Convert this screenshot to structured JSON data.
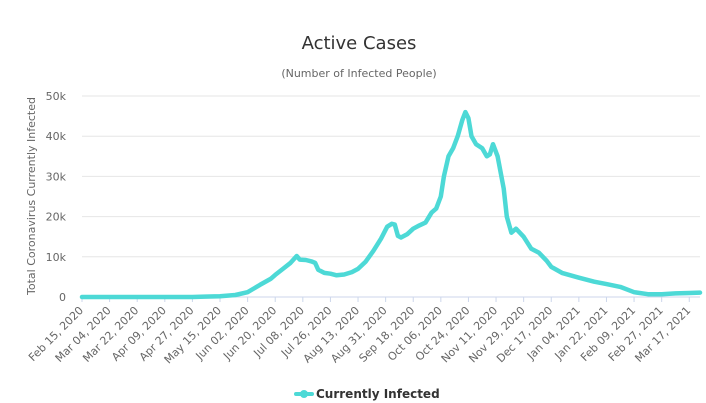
{
  "chart_data": {
    "type": "line",
    "title": "Active Cases",
    "subtitle": "(Number of Infected People)",
    "xlabel": "",
    "ylabel": "Total Coronavirus Currently Infected",
    "x_tick_labels": [
      "Feb 15, 2020",
      "Mar 04, 2020",
      "Mar 22, 2020",
      "Apr 09, 2020",
      "Apr 27, 2020",
      "May 15, 2020",
      "Jun 02, 2020",
      "Jun 20, 2020",
      "Jul 08, 2020",
      "Jul 26, 2020",
      "Aug 13, 2020",
      "Aug 31, 2020",
      "Sep 18, 2020",
      "Oct 06, 2020",
      "Oct 24, 2020",
      "Nov 11, 2020",
      "Nov 29, 2020",
      "Dec 17, 2020",
      "Jan 04, 2021",
      "Jan 22, 2021",
      "Feb 09, 2021",
      "Feb 27, 2021",
      "Mar 17, 2021"
    ],
    "y_ticks": [
      0,
      10000,
      20000,
      30000,
      40000,
      50000
    ],
    "y_tick_labels": [
      "0",
      "10k",
      "20k",
      "30k",
      "40k",
      "50k"
    ],
    "ylim": [
      0,
      50000
    ],
    "grid": true,
    "legend_position": "bottom-center",
    "series": [
      {
        "name": "Currently Infected",
        "color": "#4dd9d6",
        "points": [
          [
            "Feb 15, 2020",
            0
          ],
          [
            "Mar 04, 2020",
            0
          ],
          [
            "Mar 22, 2020",
            0
          ],
          [
            "Apr 09, 2020",
            0
          ],
          [
            "Apr 27, 2020",
            0
          ],
          [
            "May 05, 2020",
            100
          ],
          [
            "May 15, 2020",
            200
          ],
          [
            "May 25, 2020",
            500
          ],
          [
            "Jun 02, 2020",
            1200
          ],
          [
            "Jun 10, 2020",
            3000
          ],
          [
            "Jun 17, 2020",
            4500
          ],
          [
            "Jun 20, 2020",
            5500
          ],
          [
            "Jun 25, 2020",
            7000
          ],
          [
            "Jun 30, 2020",
            8500
          ],
          [
            "Jul 04, 2020",
            10200
          ],
          [
            "Jul 06, 2020",
            9300
          ],
          [
            "Jul 10, 2020",
            9200
          ],
          [
            "Jul 14, 2020",
            8800
          ],
          [
            "Jul 16, 2020",
            8500
          ],
          [
            "Jul 18, 2020",
            6800
          ],
          [
            "Jul 22, 2020",
            6000
          ],
          [
            "Jul 26, 2020",
            5800
          ],
          [
            "Jul 30, 2020",
            5400
          ],
          [
            "Aug 04, 2020",
            5600
          ],
          [
            "Aug 09, 2020",
            6200
          ],
          [
            "Aug 13, 2020",
            7000
          ],
          [
            "Aug 18, 2020",
            8800
          ],
          [
            "Aug 23, 2020",
            11500
          ],
          [
            "Aug 28, 2020",
            14500
          ],
          [
            "Sep 01, 2020",
            17500
          ],
          [
            "Sep 04, 2020",
            18200
          ],
          [
            "Sep 06, 2020",
            18000
          ],
          [
            "Sep 08, 2020",
            15200
          ],
          [
            "Sep 10, 2020",
            14800
          ],
          [
            "Sep 14, 2020",
            15600
          ],
          [
            "Sep 18, 2020",
            17000
          ],
          [
            "Sep 22, 2020",
            17800
          ],
          [
            "Sep 26, 2020",
            18500
          ],
          [
            "Sep 30, 2020",
            21000
          ],
          [
            "Oct 03, 2020",
            22000
          ],
          [
            "Oct 06, 2020",
            25000
          ],
          [
            "Oct 08, 2020",
            30000
          ],
          [
            "Oct 11, 2020",
            35000
          ],
          [
            "Oct 14, 2020",
            37000
          ],
          [
            "Oct 17, 2020",
            40000
          ],
          [
            "Oct 20, 2020",
            44000
          ],
          [
            "Oct 22, 2020",
            46000
          ],
          [
            "Oct 24, 2020",
            44500
          ],
          [
            "Oct 26, 2020",
            40000
          ],
          [
            "Oct 29, 2020",
            38000
          ],
          [
            "Nov 02, 2020",
            37000
          ],
          [
            "Nov 05, 2020",
            35000
          ],
          [
            "Nov 07, 2020",
            35500
          ],
          [
            "Nov 09, 2020",
            38000
          ],
          [
            "Nov 12, 2020",
            35000
          ],
          [
            "Nov 16, 2020",
            27000
          ],
          [
            "Nov 18, 2020",
            20000
          ],
          [
            "Nov 21, 2020",
            16000
          ],
          [
            "Nov 24, 2020",
            17000
          ],
          [
            "Nov 29, 2020",
            15000
          ],
          [
            "Dec 04, 2020",
            12000
          ],
          [
            "Dec 09, 2020",
            11000
          ],
          [
            "Dec 14, 2020",
            9000
          ],
          [
            "Dec 17, 2020",
            7500
          ],
          [
            "Dec 24, 2020",
            6000
          ],
          [
            "Jan 04, 2021",
            4800
          ],
          [
            "Jan 14, 2021",
            3800
          ],
          [
            "Jan 22, 2021",
            3200
          ],
          [
            "Jan 31, 2021",
            2500
          ],
          [
            "Feb 09, 2021",
            1200
          ],
          [
            "Feb 18, 2021",
            700
          ],
          [
            "Feb 27, 2021",
            700
          ],
          [
            "Mar 08, 2021",
            900
          ],
          [
            "Mar 17, 2021",
            1000
          ],
          [
            "Mar 24, 2021",
            1100
          ]
        ]
      }
    ]
  }
}
